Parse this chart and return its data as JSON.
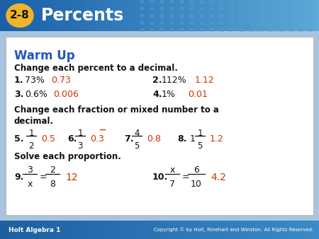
{
  "header_bg_left": "#1a5fa8",
  "header_bg_right": "#4a9fd4",
  "header_text_color": "#ffffff",
  "header_badge_bg": "#f0b429",
  "header_badge_text": "2-8",
  "header_title": "Percents",
  "footer_bg": "#2a6db5",
  "footer_left": "Holt Algebra 1",
  "footer_right": "Copyright © by Holt, Rinehart and Winston. All Rights Reserved.",
  "warmup_color": "#2255bb",
  "answer_color": "#cc3300",
  "black_color": "#111111",
  "outer_bg": "#a8c4de",
  "body_bg": "#ffffff",
  "warmup_title": "Warm Up",
  "section1": "Change each percent to a decimal.",
  "section2_line1": "Change each fraction or mixed number to a",
  "section2_line2": "decimal.",
  "section3": "Solve each proportion."
}
